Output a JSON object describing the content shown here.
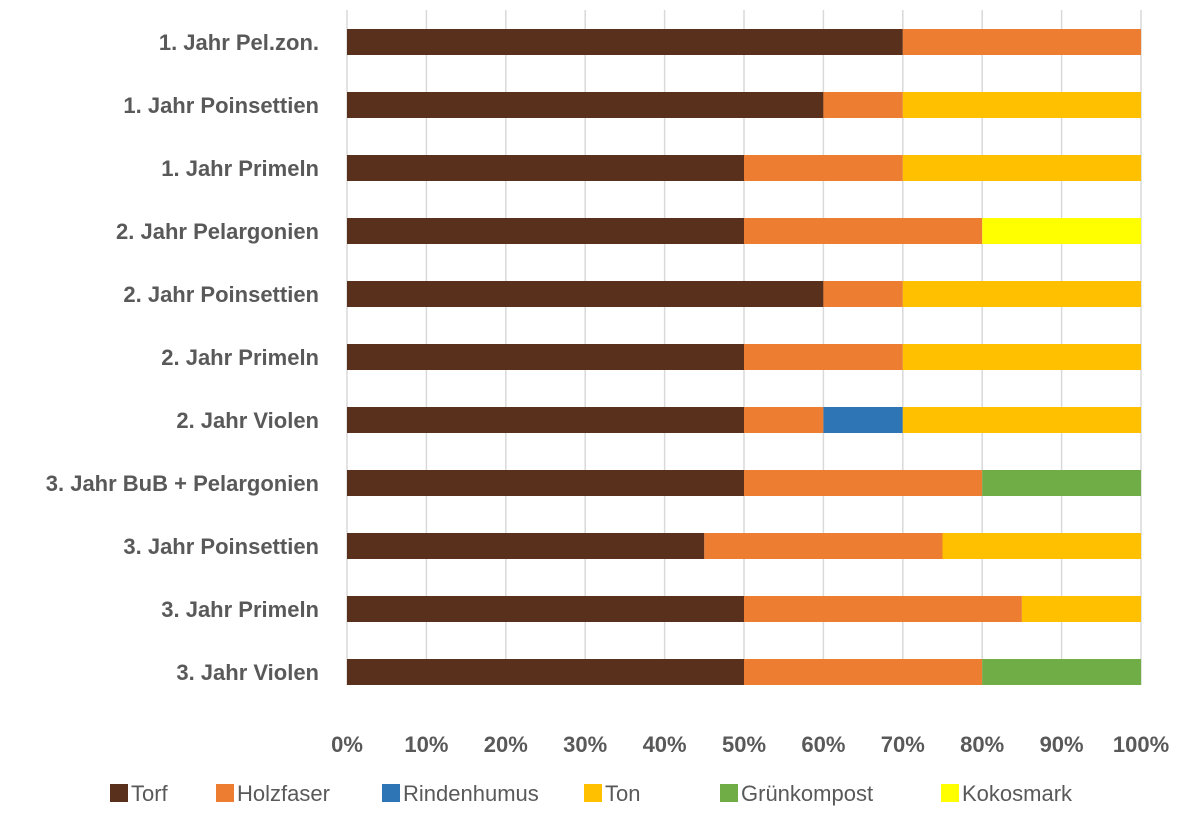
{
  "chart_data": {
    "type": "bar",
    "orientation": "horizontal",
    "stacked": "percent",
    "categories": [
      "1. Jahr Pel.zon.",
      "1. Jahr Poinsettien",
      "1. Jahr Primeln",
      "2. Jahr Pelargonien",
      "2. Jahr Poinsettien",
      "2. Jahr Primeln",
      "2. Jahr Violen",
      "3. Jahr BuB + Pelargonien",
      "3. Jahr Poinsettien",
      "3. Jahr Primeln",
      "3. Jahr Violen"
    ],
    "series": [
      {
        "name": "Torf",
        "color": "#58301c",
        "values": [
          70,
          60,
          50,
          50,
          60,
          50,
          50,
          50,
          45,
          50,
          50
        ]
      },
      {
        "name": "Holzfaser",
        "color": "#ed7d31",
        "values": [
          30,
          10,
          20,
          30,
          10,
          20,
          10,
          30,
          30,
          35,
          30
        ]
      },
      {
        "name": "Rindenhumus",
        "color": "#2e75b6",
        "values": [
          0,
          0,
          0,
          0,
          0,
          0,
          10,
          0,
          0,
          0,
          0
        ]
      },
      {
        "name": "Ton",
        "color": "#ffc000",
        "values": [
          0,
          30,
          30,
          0,
          30,
          30,
          30,
          0,
          25,
          15,
          0
        ]
      },
      {
        "name": "Grünkompost",
        "color": "#70ad47",
        "values": [
          0,
          0,
          0,
          0,
          0,
          0,
          0,
          20,
          0,
          0,
          20
        ]
      },
      {
        "name": "Kokosmark",
        "color": "#ffff00",
        "values": [
          0,
          0,
          0,
          20,
          0,
          0,
          0,
          0,
          0,
          0,
          0
        ]
      }
    ],
    "xlim": [
      0,
      100
    ],
    "x_ticks": [
      "0%",
      "10%",
      "20%",
      "30%",
      "40%",
      "50%",
      "60%",
      "70%",
      "80%",
      "90%",
      "100%"
    ],
    "title": "",
    "xlabel": "",
    "ylabel": "",
    "grid": "vertical",
    "legend_position": "bottom",
    "colors": {
      "gridline": "#d9d9d9",
      "text": "#595959"
    }
  }
}
